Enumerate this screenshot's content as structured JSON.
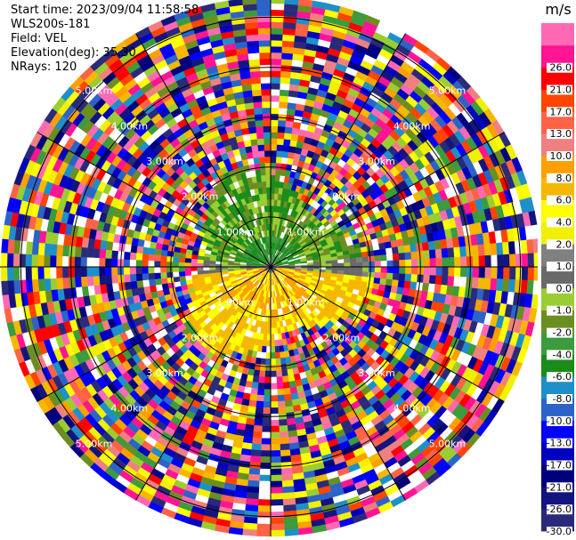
{
  "header": {
    "start_time": "Start time: 2023/09/04 11:58:58",
    "instrument": "WLS200s-181",
    "field": "Field: VEL",
    "elevation": "Elevation(deg): 35.30",
    "nrays": "NRays: 120"
  },
  "chart_data": {
    "type": "heatmap",
    "projection": "polar-ppi",
    "field": "VEL",
    "units": "m/s",
    "nrays": 120,
    "range_rings": [
      {
        "range_km": 1.0,
        "label": "1.00km"
      },
      {
        "range_km": 2.0,
        "label": "2.00km"
      },
      {
        "range_km": 3.0,
        "label": "3.00km"
      },
      {
        "range_km": 4.0,
        "label": "4.00km"
      },
      {
        "range_km": 5.0,
        "label": "5.00km"
      }
    ],
    "max_range_km": 5.4,
    "colorbar": {
      "title": "m/s",
      "levels": [
        -30.0,
        -26.0,
        -21.0,
        -17.0,
        -13.0,
        -10.0,
        -8.0,
        -6.0,
        -4.0,
        -2.0,
        -1.0,
        0.0,
        1.0,
        2.0,
        4.0,
        6.0,
        8.0,
        10.0,
        13.0,
        17.0,
        21.0,
        26.0
      ],
      "labels": [
        "-30.0",
        "-26.0",
        "-21.0",
        "-17.0",
        "-13.0",
        "-10.0",
        "-8.0",
        "-6.0",
        "-4.0",
        "-2.0",
        "-1.0",
        "0.0",
        "1.0",
        "2.0",
        "4.0",
        "6.0",
        "8.0",
        "10.0",
        "13.0",
        "17.0",
        "21.0",
        "26.0"
      ],
      "colors": [
        "#2a2a7a",
        "#14147f",
        "#00007f",
        "#0000bf",
        "#0000ff",
        "#2c63c8",
        "#1f8fc9",
        "#1a8c1a",
        "#3c9b3c",
        "#6b8e23",
        "#9acd32",
        "#696969",
        "#808080",
        "#f0f000",
        "#ffff00",
        "#f5b800",
        "#ff9f00",
        "#f08080",
        "#ff6347",
        "#ff4500",
        "#ff0000",
        "#ff1493",
        "#ff69b4"
      ]
    },
    "pattern": {
      "north_half": "negative velocities (greens/olive) near the center",
      "south_half": "positive velocities (yellow/orange) near the center",
      "outer_region": "noisy multicolor returns beyond about 1.8km"
    }
  }
}
